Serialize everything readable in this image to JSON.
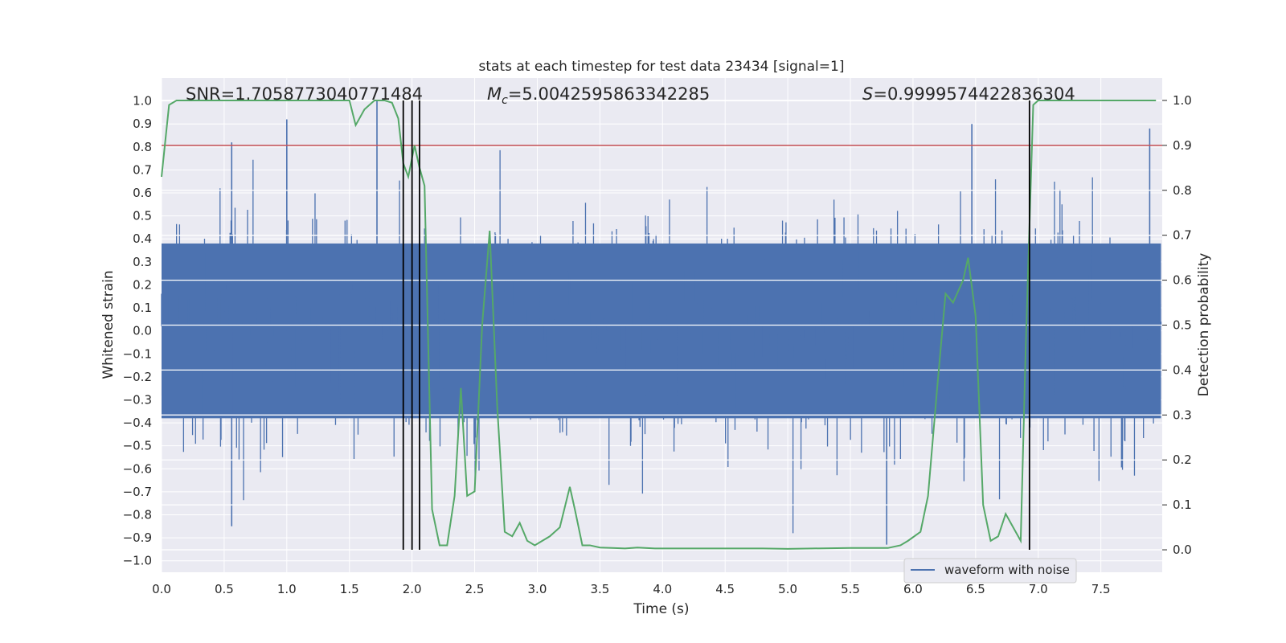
{
  "chart_data": {
    "type": "line",
    "title": "stats at each timestep for test data 23434 [signal=1]",
    "xlabel": "Time (s)",
    "ylabel": "Whitened strain",
    "y2label": "Detection probability",
    "xlim": [
      0,
      7.99
    ],
    "ylim": [
      -1.05,
      1.1
    ],
    "y2lim": [
      -0.05,
      1.05
    ],
    "x_ticks": [
      "0.0",
      "0.5",
      "1.0",
      "1.5",
      "2.0",
      "2.5",
      "3.0",
      "3.5",
      "4.0",
      "4.5",
      "5.0",
      "5.5",
      "6.0",
      "6.5",
      "7.0",
      "7.5"
    ],
    "y_ticks": [
      "1.0",
      "0.9",
      "0.8",
      "0.7",
      "0.6",
      "0.5",
      "0.4",
      "0.3",
      "0.2",
      "0.1",
      "0.0",
      "-0.1",
      "-0.2",
      "-0.3",
      "-0.4",
      "-0.5",
      "-0.6",
      "-0.7",
      "-0.8",
      "-0.9",
      "-1.0"
    ],
    "y2_ticks": [
      "1.0",
      "0.9",
      "0.8",
      "0.7",
      "0.6",
      "0.5",
      "0.4",
      "0.3",
      "0.2",
      "0.1",
      "0.0"
    ],
    "annotations": {
      "snr": "SNR=1.7058773040771484",
      "mc_symbol": "M",
      "mc_sub": "c",
      "mc_value": "=5.0042595863342285",
      "s_symbol": "S",
      "s_value": "=0.9999574422836304"
    },
    "legend": {
      "label": "waveform with noise",
      "location": "lower-right"
    },
    "threshold": {
      "value": 0.9,
      "axis": "right",
      "color": "#c44e52"
    },
    "vertical_markers": [
      1.93,
      2.0,
      2.06,
      6.93
    ],
    "colors": {
      "waveform": "#4c72b0",
      "probability": "#55a868",
      "threshold": "#c44e52",
      "marker": "#000000"
    },
    "waveform_noise_seed": 23434,
    "waveform_extremes": [
      {
        "t": 0.56,
        "v": 0.82
      },
      {
        "t": 0.56,
        "v": -0.85
      },
      {
        "t": 1.0,
        "v": 0.92
      },
      {
        "t": 1.72,
        "v": 1.0
      },
      {
        "t": 6.47,
        "v": 0.9
      },
      {
        "t": 6.93,
        "v": 0.93
      },
      {
        "t": 5.79,
        "v": -0.93
      },
      {
        "t": 7.89,
        "v": 0.88
      }
    ],
    "series": [
      {
        "name": "detection probability",
        "axis": "right",
        "x": [
          0.0,
          0.06,
          0.12,
          0.2,
          0.5,
          0.8,
          1.1,
          1.3,
          1.5,
          1.55,
          1.62,
          1.7,
          1.78,
          1.84,
          1.89,
          1.93,
          1.97,
          2.02,
          2.06,
          2.1,
          2.16,
          2.22,
          2.28,
          2.34,
          2.39,
          2.44,
          2.5,
          2.56,
          2.62,
          2.68,
          2.74,
          2.8,
          2.86,
          2.92,
          2.98,
          3.04,
          3.1,
          3.18,
          3.26,
          3.3,
          3.36,
          3.42,
          3.5,
          3.6,
          3.7,
          3.8,
          3.94,
          4.0,
          4.2,
          4.5,
          4.8,
          5.0,
          5.2,
          5.5,
          5.8,
          5.9,
          5.96,
          6.06,
          6.12,
          6.19,
          6.26,
          6.32,
          6.4,
          6.44,
          6.5,
          6.56,
          6.62,
          6.68,
          6.74,
          6.8,
          6.86,
          6.9,
          6.96,
          7.0,
          7.3,
          7.6,
          7.94
        ],
        "values": [
          0.83,
          0.99,
          1.0,
          1.0,
          1.0,
          1.0,
          1.0,
          1.0,
          1.0,
          0.945,
          0.98,
          1.0,
          1.0,
          0.995,
          0.96,
          0.86,
          0.83,
          0.9,
          0.85,
          0.81,
          0.09,
          0.01,
          0.01,
          0.12,
          0.36,
          0.12,
          0.13,
          0.5,
          0.71,
          0.32,
          0.04,
          0.03,
          0.06,
          0.02,
          0.01,
          0.02,
          0.03,
          0.05,
          0.14,
          0.09,
          0.01,
          0.01,
          0.005,
          0.004,
          0.003,
          0.005,
          0.003,
          0.003,
          0.003,
          0.003,
          0.003,
          0.002,
          0.003,
          0.004,
          0.004,
          0.01,
          0.02,
          0.04,
          0.12,
          0.35,
          0.57,
          0.55,
          0.6,
          0.65,
          0.52,
          0.1,
          0.02,
          0.03,
          0.08,
          0.05,
          0.02,
          0.45,
          0.99,
          1.0,
          1.0,
          1.0,
          1.0
        ]
      }
    ]
  }
}
